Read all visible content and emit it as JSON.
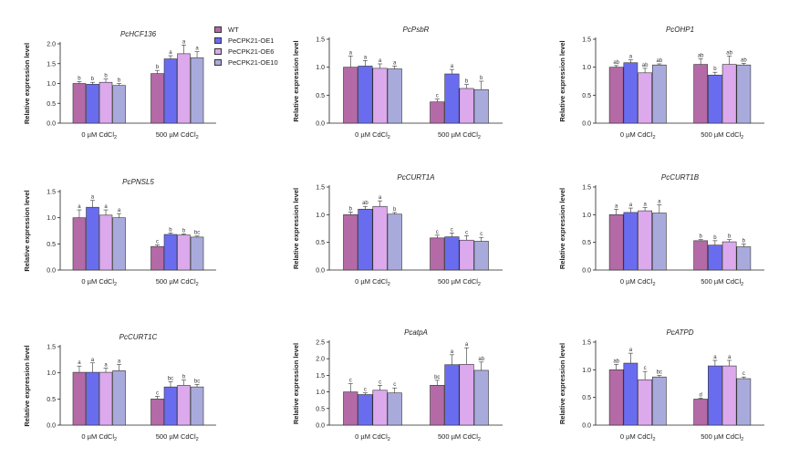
{
  "legend": {
    "items": [
      {
        "label": "WT",
        "color": "#b46aa6"
      },
      {
        "label": "PeCPK21-OE1",
        "color": "#6a6cf0"
      },
      {
        "label": "PeCPK21-OE6",
        "color": "#dba9ec"
      },
      {
        "label": "PeCPK21-OE10",
        "color": "#a9aadc"
      }
    ]
  },
  "chart_data": [
    {
      "type": "bar",
      "title": "PcHCF136",
      "ylabel": "Relative expression level",
      "ylim": [
        0,
        2.0
      ],
      "yticks": [
        "0.0",
        "0.5",
        "1.0",
        "1.5",
        "2.0"
      ],
      "categories": [
        "0 µM CdCl",
        "500 µM CdCl"
      ],
      "category_sub": "2",
      "series": [
        {
          "name": "WT",
          "values": [
            1.0,
            1.25
          ],
          "errors": [
            0.05,
            0.08
          ],
          "letters": [
            "b",
            "b"
          ]
        },
        {
          "name": "PeCPK21-OE1",
          "values": [
            0.98,
            1.62
          ],
          "errors": [
            0.05,
            0.08
          ],
          "letters": [
            "b",
            "a"
          ]
        },
        {
          "name": "PeCPK21-OE6",
          "values": [
            1.03,
            1.75
          ],
          "errors": [
            0.08,
            0.22
          ],
          "letters": [
            "b",
            "a"
          ]
        },
        {
          "name": "PeCPK21-OE10",
          "values": [
            0.95,
            1.65
          ],
          "errors": [
            0.05,
            0.15
          ],
          "letters": [
            "b",
            "a"
          ]
        }
      ]
    },
    {
      "type": "bar",
      "title": "PcPsbR",
      "ylabel": "Relative expression level",
      "ylim": [
        0,
        1.5
      ],
      "yticks": [
        "0.0",
        "0.5",
        "1.0",
        "1.5"
      ],
      "categories": [
        "0 µM CdCl",
        "500 µM CdCl"
      ],
      "category_sub": "2",
      "series": [
        {
          "name": "WT",
          "values": [
            1.0,
            0.38
          ],
          "errors": [
            0.2,
            0.05
          ],
          "letters": [
            "a",
            "c"
          ]
        },
        {
          "name": "PeCPK21-OE1",
          "values": [
            1.02,
            0.88
          ],
          "errors": [
            0.1,
            0.08
          ],
          "letters": [
            "a",
            "a"
          ]
        },
        {
          "name": "PeCPK21-OE6",
          "values": [
            0.98,
            0.62
          ],
          "errors": [
            0.08,
            0.07
          ],
          "letters": [
            "a",
            "b"
          ]
        },
        {
          "name": "PeCPK21-OE10",
          "values": [
            0.97,
            0.6
          ],
          "errors": [
            0.05,
            0.15
          ],
          "letters": [
            "a",
            "b"
          ]
        }
      ]
    },
    {
      "type": "bar",
      "title": "PcOHP1",
      "ylabel": "Relative expression level",
      "ylim": [
        0,
        1.5
      ],
      "yticks": [
        "0.0",
        "0.5",
        "1.0",
        "1.5"
      ],
      "categories": [
        "0 µM CdCl",
        "500 µM CdCl"
      ],
      "category_sub": "2",
      "series": [
        {
          "name": "WT",
          "values": [
            1.0,
            1.05
          ],
          "errors": [
            0.03,
            0.1
          ],
          "letters": [
            "ab",
            "ab"
          ]
        },
        {
          "name": "PeCPK21-OE1",
          "values": [
            1.08,
            0.86
          ],
          "errors": [
            0.05,
            0.05
          ],
          "letters": [
            "a",
            "b"
          ]
        },
        {
          "name": "PeCPK21-OE6",
          "values": [
            0.9,
            1.05
          ],
          "errors": [
            0.08,
            0.15
          ],
          "letters": [
            "ab",
            "ab"
          ]
        },
        {
          "name": "PeCPK21-OE10",
          "values": [
            1.04,
            1.04
          ],
          "errors": [
            0.02,
            0.03
          ],
          "letters": [
            "ab",
            "ab"
          ]
        }
      ]
    },
    {
      "type": "bar",
      "title": "PcPNSL5",
      "ylabel": "Relative expression level",
      "ylim": [
        0,
        1.5
      ],
      "yticks": [
        "0.0",
        "0.5",
        "1.0",
        "1.5"
      ],
      "categories": [
        "0 µM CdCl",
        "500 µM CdCl"
      ],
      "category_sub": "2",
      "series": [
        {
          "name": "WT",
          "values": [
            1.0,
            0.45
          ],
          "errors": [
            0.15,
            0.03
          ],
          "letters": [
            "a",
            "c"
          ]
        },
        {
          "name": "PeCPK21-OE1",
          "values": [
            1.2,
            0.68
          ],
          "errors": [
            0.13,
            0.03
          ],
          "letters": [
            "a",
            "b"
          ]
        },
        {
          "name": "PeCPK21-OE6",
          "values": [
            1.05,
            0.67
          ],
          "errors": [
            0.1,
            0.02
          ],
          "letters": [
            "a",
            "b"
          ]
        },
        {
          "name": "PeCPK21-OE10",
          "values": [
            1.0,
            0.63
          ],
          "errors": [
            0.08,
            0.02
          ],
          "letters": [
            "a",
            "bc"
          ]
        }
      ]
    },
    {
      "type": "bar",
      "title": "PcCURT1A",
      "ylabel": "Relative expression level",
      "ylim": [
        0,
        1.5
      ],
      "yticks": [
        "0.0",
        "0.5",
        "1.0",
        "1.5"
      ],
      "categories": [
        "0 µM CdCl",
        "500 µM CdCl"
      ],
      "category_sub": "2",
      "series": [
        {
          "name": "WT",
          "values": [
            1.0,
            0.58
          ],
          "errors": [
            0.05,
            0.05
          ],
          "letters": [
            "b",
            "c"
          ]
        },
        {
          "name": "PeCPK21-OE1",
          "values": [
            1.1,
            0.6
          ],
          "errors": [
            0.05,
            0.07
          ],
          "letters": [
            "ab",
            "c"
          ]
        },
        {
          "name": "PeCPK21-OE6",
          "values": [
            1.15,
            0.54
          ],
          "errors": [
            0.1,
            0.08
          ],
          "letters": [
            "a",
            "c"
          ]
        },
        {
          "name": "PeCPK21-OE10",
          "values": [
            1.01,
            0.52
          ],
          "errors": [
            0.03,
            0.07
          ],
          "letters": [
            "b",
            "c"
          ]
        }
      ]
    },
    {
      "type": "bar",
      "title": "PcCURT1B",
      "ylabel": "Relative expression level",
      "ylim": [
        0,
        1.5
      ],
      "yticks": [
        "0.0",
        "0.5",
        "1.0",
        "1.5"
      ],
      "categories": [
        "0 µM CdCl",
        "500 µM CdCl"
      ],
      "category_sub": "2",
      "series": [
        {
          "name": "WT",
          "values": [
            1.0,
            0.53
          ],
          "errors": [
            0.1,
            0.02
          ],
          "letters": [
            "a",
            "b"
          ]
        },
        {
          "name": "PeCPK21-OE1",
          "values": [
            1.04,
            0.45
          ],
          "errors": [
            0.08,
            0.08
          ],
          "letters": [
            "a",
            "b"
          ]
        },
        {
          "name": "PeCPK21-OE6",
          "values": [
            1.07,
            0.51
          ],
          "errors": [
            0.06,
            0.04
          ],
          "letters": [
            "a",
            "b"
          ]
        },
        {
          "name": "PeCPK21-OE10",
          "values": [
            1.03,
            0.42
          ],
          "errors": [
            0.15,
            0.05
          ],
          "letters": [
            "a",
            "b"
          ]
        }
      ]
    },
    {
      "type": "bar",
      "title": "PcCURT1C",
      "ylabel": "Relative expression level",
      "ylim": [
        0,
        1.5
      ],
      "yticks": [
        "0.0",
        "0.5",
        "1.0",
        "1.5"
      ],
      "categories": [
        "0 µM CdCl",
        "500 µM CdCl"
      ],
      "category_sub": "2",
      "series": [
        {
          "name": "WT",
          "values": [
            1.01,
            0.5
          ],
          "errors": [
            0.12,
            0.05
          ],
          "letters": [
            "a",
            "c"
          ]
        },
        {
          "name": "PeCPK21-OE1",
          "values": [
            1.01,
            0.73
          ],
          "errors": [
            0.18,
            0.1
          ],
          "letters": [
            "a",
            "bc"
          ]
        },
        {
          "name": "PeCPK21-OE6",
          "values": [
            1.01,
            0.76
          ],
          "errors": [
            0.08,
            0.1
          ],
          "letters": [
            "a",
            "b"
          ]
        },
        {
          "name": "PeCPK21-OE10",
          "values": [
            1.04,
            0.73
          ],
          "errors": [
            0.12,
            0.05
          ],
          "letters": [
            "a",
            "bc"
          ]
        }
      ]
    },
    {
      "type": "bar",
      "title": "PcatpA",
      "ylabel": "Relative expression level",
      "ylim": [
        0,
        2.5
      ],
      "yticks": [
        "0.0",
        "0.5",
        "1.0",
        "1.5",
        "2.0",
        "2.5"
      ],
      "categories": [
        "0 µM CdCl",
        "500 µM CdCl"
      ],
      "category_sub": "2",
      "series": [
        {
          "name": "WT",
          "values": [
            1.0,
            1.2
          ],
          "errors": [
            0.25,
            0.15
          ],
          "letters": [
            "c",
            "bc"
          ]
        },
        {
          "name": "PeCPK21-OE1",
          "values": [
            0.92,
            1.82
          ],
          "errors": [
            0.05,
            0.3
          ],
          "letters": [
            "c",
            "a"
          ]
        },
        {
          "name": "PeCPK21-OE6",
          "values": [
            1.05,
            1.83
          ],
          "errors": [
            0.15,
            0.5
          ],
          "letters": [
            "c",
            "a"
          ]
        },
        {
          "name": "PeCPK21-OE10",
          "values": [
            0.97,
            1.65
          ],
          "errors": [
            0.15,
            0.25
          ],
          "letters": [
            "c",
            "ab"
          ]
        }
      ]
    },
    {
      "type": "bar",
      "title": "PcATPD",
      "ylabel": "Relative expression level",
      "ylim": [
        0,
        1.5
      ],
      "yticks": [
        "0.0",
        "0.5",
        "1.0",
        "1.5"
      ],
      "categories": [
        "0 µM CdCl",
        "500 µM CdCl"
      ],
      "category_sub": "2",
      "series": [
        {
          "name": "WT",
          "values": [
            1.0,
            0.47
          ],
          "errors": [
            0.1,
            0.02
          ],
          "letters": [
            "ab",
            "d"
          ]
        },
        {
          "name": "PeCPK21-OE1",
          "values": [
            1.12,
            1.07
          ],
          "errors": [
            0.18,
            0.1
          ],
          "letters": [
            "a",
            "a"
          ]
        },
        {
          "name": "PeCPK21-OE6",
          "values": [
            0.82,
            1.07
          ],
          "errors": [
            0.15,
            0.1
          ],
          "letters": [
            "c",
            "a"
          ]
        },
        {
          "name": "PeCPK21-OE10",
          "values": [
            0.87,
            0.84
          ],
          "errors": [
            0.03,
            0.03
          ],
          "letters": [
            "bc",
            "c"
          ]
        }
      ]
    }
  ]
}
